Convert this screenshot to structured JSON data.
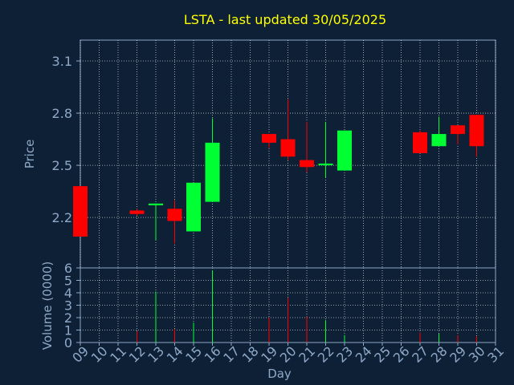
{
  "chart_data": {
    "type": "candlestick",
    "title": "LSTA - last updated 30/05/2025",
    "xlabel": "Day",
    "ylabel_price": "Price",
    "ylabel_volume": "Volume (0000)",
    "x_ticks": [
      "09",
      "10",
      "11",
      "12",
      "13",
      "14",
      "15",
      "16",
      "17",
      "18",
      "19",
      "20",
      "21",
      "22",
      "23",
      "24",
      "25",
      "26",
      "27",
      "28",
      "29",
      "30",
      "31"
    ],
    "price_ticks": [
      2.2,
      2.5,
      2.8,
      3.1
    ],
    "price_ylim": [
      1.91,
      3.22
    ],
    "volume_ticks": [
      0,
      1,
      2,
      3,
      4,
      5,
      6
    ],
    "volume_ylim": [
      0,
      6
    ],
    "grid": true,
    "colors": {
      "up": "#00ff33",
      "down": "#ff0000",
      "title": "#ffff00",
      "axis": "#8ea9c8",
      "grid": "#ffffff"
    },
    "candles": [
      {
        "day": 9,
        "open": 2.38,
        "high": 2.38,
        "low": 2.09,
        "close": 2.09
      },
      {
        "day": 12,
        "open": 2.24,
        "high": 2.25,
        "low": 2.21,
        "close": 2.22
      },
      {
        "day": 13,
        "open": 2.27,
        "high": 2.28,
        "low": 2.07,
        "close": 2.28
      },
      {
        "day": 14,
        "open": 2.25,
        "high": 2.3,
        "low": 2.05,
        "close": 2.18
      },
      {
        "day": 15,
        "open": 2.12,
        "high": 2.4,
        "low": 2.12,
        "close": 2.4
      },
      {
        "day": 16,
        "open": 2.29,
        "high": 2.77,
        "low": 2.29,
        "close": 2.63
      },
      {
        "day": 19,
        "open": 2.68,
        "high": 2.68,
        "low": 2.6,
        "close": 2.63
      },
      {
        "day": 20,
        "open": 2.65,
        "high": 2.88,
        "low": 2.53,
        "close": 2.55
      },
      {
        "day": 21,
        "open": 2.53,
        "high": 2.75,
        "low": 2.46,
        "close": 2.49
      },
      {
        "day": 22,
        "open": 2.5,
        "high": 2.75,
        "low": 2.43,
        "close": 2.51
      },
      {
        "day": 23,
        "open": 2.47,
        "high": 2.7,
        "low": 2.47,
        "close": 2.7
      },
      {
        "day": 27,
        "open": 2.69,
        "high": 2.7,
        "low": 2.57,
        "close": 2.57
      },
      {
        "day": 28,
        "open": 2.61,
        "high": 2.78,
        "low": 2.61,
        "close": 2.68
      },
      {
        "day": 29,
        "open": 2.73,
        "high": 2.73,
        "low": 2.62,
        "close": 2.68
      },
      {
        "day": 30,
        "open": 2.79,
        "high": 2.79,
        "low": 2.55,
        "close": 2.61
      }
    ],
    "volume": [
      {
        "day": 9,
        "value": 0.0
      },
      {
        "day": 12,
        "value": 0.9
      },
      {
        "day": 13,
        "value": 4.1
      },
      {
        "day": 14,
        "value": 1.1
      },
      {
        "day": 15,
        "value": 1.6
      },
      {
        "day": 16,
        "value": 5.8
      },
      {
        "day": 19,
        "value": 2.0
      },
      {
        "day": 20,
        "value": 3.6
      },
      {
        "day": 21,
        "value": 2.1
      },
      {
        "day": 22,
        "value": 1.8
      },
      {
        "day": 23,
        "value": 0.6
      },
      {
        "day": 27,
        "value": 0.8
      },
      {
        "day": 28,
        "value": 0.7
      },
      {
        "day": 29,
        "value": 0.6
      },
      {
        "day": 30,
        "value": 0.5
      }
    ]
  }
}
